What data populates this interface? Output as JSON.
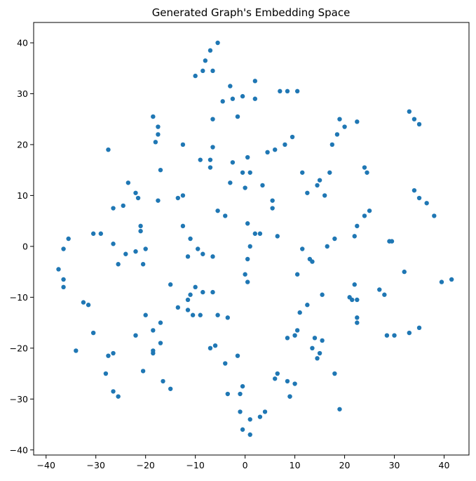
{
  "chart_data": {
    "type": "scatter",
    "title": "Generated Graph's Embedding Space",
    "xlabel": "",
    "ylabel": "",
    "xlim": [
      -42.5,
      45
    ],
    "ylim": [
      -41,
      44
    ],
    "xticks": [
      -40,
      -30,
      -20,
      -10,
      0,
      10,
      20,
      30,
      40
    ],
    "yticks": [
      -40,
      -30,
      -20,
      -10,
      0,
      10,
      20,
      30,
      40
    ],
    "grid": false,
    "legend": "none",
    "marker_color": "#1f77b4",
    "series": [
      {
        "x": [
          -5.5,
          -7,
          -8,
          -6.5,
          -10,
          -8.5,
          -3,
          -2.5,
          -0.5,
          2,
          2,
          7,
          8.5,
          10.5,
          -18.5,
          -17.5,
          -17.5,
          -18,
          -27.5,
          -1.5,
          -6.5,
          -6.5,
          -12.5,
          -4.5,
          0.5,
          -2.5,
          -7,
          -9,
          -7,
          4.5,
          6,
          8,
          9.5,
          11.5,
          17.5,
          19,
          20,
          18.5,
          22.5,
          33,
          34,
          35,
          -17,
          -0.5,
          1,
          -3,
          0,
          3.5,
          -23.5,
          -22,
          -21.5,
          -26.5,
          -24.5,
          -17.5,
          -13.5,
          -12.5,
          12.5,
          14.5,
          15,
          16,
          17,
          34,
          35,
          36.5,
          38,
          24,
          24.5,
          25,
          24,
          22.5,
          22,
          18,
          16.5,
          11.5,
          13,
          13.5,
          10.5,
          -29,
          -30.5,
          -21,
          -35.5,
          -36.5,
          -37.5,
          -36.5,
          -36.5,
          -26.5,
          -24,
          -22,
          -20,
          -20.5,
          -25.5,
          -12.5,
          -11,
          -11.5,
          -9.5,
          -8.5,
          -6.5,
          -5.5,
          -4,
          -21,
          5.5,
          5.5,
          6.5,
          3,
          2,
          0.5,
          1,
          0.5,
          0,
          0.5,
          -15,
          -10,
          -11.5,
          -8.5,
          -6.5,
          -11,
          -13.5,
          -11.5,
          -10.5,
          -9,
          -17,
          -22,
          -20,
          -18.5,
          -17,
          -18.5,
          -18.5,
          -20.5,
          -16.5,
          -15,
          -26.5,
          -25.5,
          -32.5,
          -31.5,
          -30.5,
          -34,
          -26.5,
          -27.5,
          -28,
          -0.5,
          -1,
          -3.5,
          -5.5,
          -6,
          -7,
          -1.5,
          -4,
          -3.5,
          -1,
          -0.5,
          1,
          1,
          3,
          8.5,
          9,
          9,
          10.5,
          11,
          12.5,
          14,
          14.5,
          13.5,
          15.5,
          15.5,
          15,
          18,
          10,
          6.5,
          4,
          6,
          8.5,
          10,
          19,
          21.5,
          22,
          22.5,
          22.5,
          22.5,
          21,
          27,
          28,
          29.5,
          29,
          28.5,
          30,
          32,
          33,
          35,
          39.5,
          41.5
        ],
        "y": [
          40,
          38.5,
          36.5,
          34.5,
          33.5,
          34.5,
          31.5,
          29,
          29.5,
          29,
          32.5,
          30.5,
          30.5,
          30.5,
          25.5,
          23.5,
          22,
          20.5,
          19,
          25.5,
          25,
          19.5,
          20,
          28.5,
          17.5,
          16.5,
          17,
          17,
          15.5,
          18.5,
          19,
          20,
          21.5,
          14.5,
          20,
          25,
          23.5,
          22,
          24.5,
          26.5,
          25,
          24,
          15,
          14.5,
          14.5,
          12.5,
          11.5,
          12,
          12.5,
          10.5,
          9.5,
          7.5,
          8,
          9,
          9.5,
          10,
          10.5,
          12,
          13,
          10,
          14.5,
          11,
          9.5,
          8.5,
          6,
          15.5,
          14.5,
          7,
          6,
          4,
          2,
          1.5,
          0,
          -0.5,
          -2.5,
          -3,
          -5.5,
          2.5,
          2.5,
          3,
          1.5,
          -0.5,
          -4.5,
          -6.5,
          -8,
          0.5,
          -1.5,
          -1,
          -0.5,
          -3.5,
          -3.5,
          4,
          1.5,
          -2,
          -0.5,
          -1.5,
          -2,
          7,
          6,
          4,
          9,
          7.5,
          2,
          2.5,
          2.5,
          4.5,
          0,
          -2.5,
          -5.5,
          -7,
          -7.5,
          -8,
          -10.5,
          -9,
          -9,
          -9.5,
          -12,
          -12.5,
          -13.5,
          -13.5,
          -15,
          -17.5,
          -13.5,
          -16.5,
          -19,
          -21,
          -20.5,
          -24.5,
          -26.5,
          -28,
          -28.5,
          -29.5,
          -11,
          -11.5,
          -17,
          -20.5,
          -21,
          -21.5,
          -25,
          -27.5,
          -29,
          -14,
          -13.5,
          -19.5,
          -20,
          -21.5,
          -23,
          -29,
          -32.5,
          -36,
          -34,
          -37,
          -33.5,
          -26.5,
          -29.5,
          -29.5,
          -16.5,
          -13,
          -11.5,
          -18,
          -22,
          -20,
          -18.5,
          -9.5,
          -21,
          -25,
          -27,
          -25,
          -32.5,
          -26,
          -18,
          -17.5,
          -32,
          -10.5,
          -7.5,
          -10.5,
          -14,
          -15,
          -10,
          -8.5,
          -9.5,
          1,
          1,
          -17.5,
          -17.5,
          -5,
          -17,
          -16,
          -7,
          -6.5
        ]
      }
    ]
  }
}
